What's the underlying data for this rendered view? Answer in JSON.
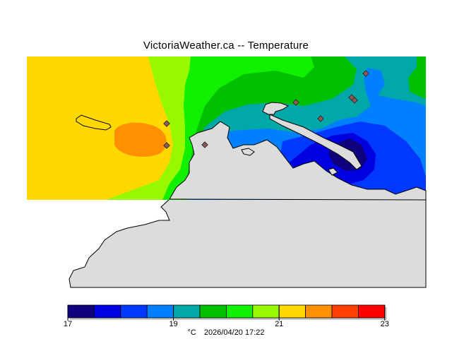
{
  "title": "VictoriaWeather.ca -- Temperature",
  "legend": {
    "ticks": [
      {
        "value": "17",
        "index": 0
      },
      {
        "value": "19",
        "index": 4
      },
      {
        "value": "21",
        "index": 8
      },
      {
        "value": "23",
        "index": 12
      }
    ],
    "unit": "°C",
    "timestamp": "2026/04/20 17:22",
    "colors": [
      "#10007d",
      "#0000e0",
      "#0038ff",
      "#0080ff",
      "#00a8a8",
      "#00c000",
      "#10f000",
      "#98f800",
      "#ffd800",
      "#ff9000",
      "#ff4000",
      "#ff0000"
    ]
  },
  "map": {
    "land_color": "#dcdcdc",
    "station_color": "#8c5a5a"
  }
}
